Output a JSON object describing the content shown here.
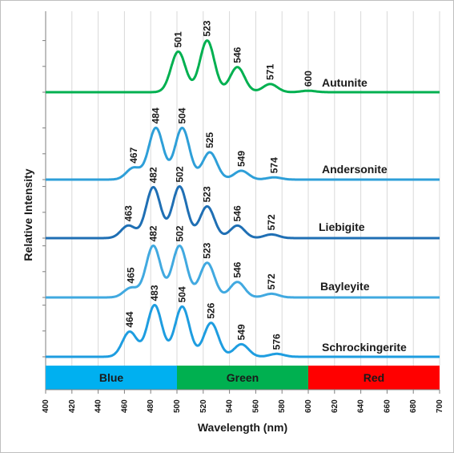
{
  "chart_data": {
    "type": "line",
    "xlabel": "Wavelength (nm)",
    "ylabel": "Relative Intensity",
    "xlim": [
      400,
      700
    ],
    "x_ticks": [
      400,
      420,
      440,
      460,
      480,
      500,
      520,
      540,
      560,
      580,
      600,
      620,
      640,
      660,
      680,
      700
    ],
    "grid": "vertical",
    "bands": [
      {
        "label": "Blue",
        "from": 400,
        "to": 500,
        "color": "#00b0f0"
      },
      {
        "label": "Green",
        "from": 500,
        "to": 600,
        "color": "#00b050"
      },
      {
        "label": "Red",
        "from": 600,
        "to": 700,
        "color": "#ff0000"
      }
    ],
    "series": [
      {
        "name": "Autunite",
        "color": "#00b050",
        "peaks": [
          {
            "x": 501,
            "h": 0.55
          },
          {
            "x": 523,
            "h": 0.7
          },
          {
            "x": 546,
            "h": 0.34
          },
          {
            "x": 571,
            "h": 0.11
          },
          {
            "x": 600,
            "h": 0.02
          }
        ]
      },
      {
        "name": "Andersonite",
        "color": "#2e9fd8",
        "peaks": [
          {
            "x": 467,
            "h": 0.16
          },
          {
            "x": 484,
            "h": 0.7
          },
          {
            "x": 504,
            "h": 0.7
          },
          {
            "x": 525,
            "h": 0.37
          },
          {
            "x": 549,
            "h": 0.12
          },
          {
            "x": 574,
            "h": 0.03
          }
        ]
      },
      {
        "name": "Liebigite",
        "color": "#1f6fb4",
        "peaks": [
          {
            "x": 463,
            "h": 0.17
          },
          {
            "x": 482,
            "h": 0.69
          },
          {
            "x": 502,
            "h": 0.7
          },
          {
            "x": 523,
            "h": 0.43
          },
          {
            "x": 546,
            "h": 0.17
          },
          {
            "x": 572,
            "h": 0.05
          }
        ]
      },
      {
        "name": "Bayleyite",
        "color": "#41a9e0",
        "peaks": [
          {
            "x": 465,
            "h": 0.13
          },
          {
            "x": 482,
            "h": 0.7
          },
          {
            "x": 502,
            "h": 0.7
          },
          {
            "x": 523,
            "h": 0.47
          },
          {
            "x": 546,
            "h": 0.21
          },
          {
            "x": 572,
            "h": 0.05
          }
        ]
      },
      {
        "name": "Schrockingerite",
        "color": "#1e9de0",
        "peaks": [
          {
            "x": 464,
            "h": 0.34
          },
          {
            "x": 483,
            "h": 0.7
          },
          {
            "x": 504,
            "h": 0.68
          },
          {
            "x": 526,
            "h": 0.46
          },
          {
            "x": 549,
            "h": 0.17
          },
          {
            "x": 576,
            "h": 0.04
          }
        ]
      }
    ]
  }
}
